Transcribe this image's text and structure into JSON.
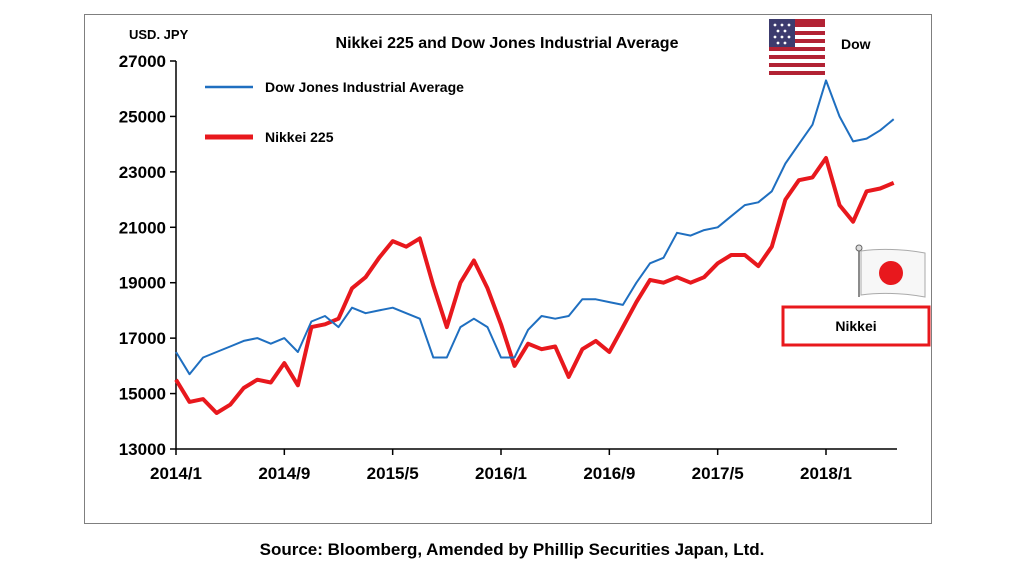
{
  "chart_data": {
    "type": "line",
    "title": "Nikkei 225 and Dow Jones Industrial Average",
    "unit_label": "USD. JPY",
    "xlabel": "",
    "ylabel": "",
    "x_ticks": [
      "2014/1",
      "2014/9",
      "2015/5",
      "2016/1",
      "2016/9",
      "2017/5",
      "2018/1"
    ],
    "y_ticks": [
      13000,
      15000,
      17000,
      19000,
      21000,
      23000,
      25000,
      27000
    ],
    "ylim": [
      13000,
      27000
    ],
    "x_range_months": [
      "2014/1",
      "2018/6"
    ],
    "grid": false,
    "legend_position": "top-left",
    "series": [
      {
        "name": "Dow Jones Industrial Average",
        "color": "#1f6fc0",
        "x": [
          "2014/1",
          "2014/2",
          "2014/3",
          "2014/4",
          "2014/5",
          "2014/6",
          "2014/7",
          "2014/8",
          "2014/9",
          "2014/10",
          "2014/11",
          "2014/12",
          "2015/1",
          "2015/2",
          "2015/3",
          "2015/4",
          "2015/5",
          "2015/6",
          "2015/7",
          "2015/8",
          "2015/9",
          "2015/10",
          "2015/11",
          "2015/12",
          "2016/1",
          "2016/2",
          "2016/3",
          "2016/4",
          "2016/5",
          "2016/6",
          "2016/7",
          "2016/8",
          "2016/9",
          "2016/10",
          "2016/11",
          "2016/12",
          "2017/1",
          "2017/2",
          "2017/3",
          "2017/4",
          "2017/5",
          "2017/6",
          "2017/7",
          "2017/8",
          "2017/9",
          "2017/10",
          "2017/11",
          "2017/12",
          "2018/1",
          "2018/2",
          "2018/3",
          "2018/4",
          "2018/5",
          "2018/6"
        ],
        "values": [
          16500,
          15700,
          16300,
          16500,
          16700,
          16900,
          17000,
          16800,
          17000,
          16500,
          17600,
          17800,
          17400,
          18100,
          17900,
          18000,
          18100,
          17900,
          17700,
          16300,
          16300,
          17400,
          17700,
          17400,
          16300,
          16300,
          17300,
          17800,
          17700,
          17800,
          18400,
          18400,
          18300,
          18200,
          19000,
          19700,
          19900,
          20800,
          20700,
          20900,
          21000,
          21400,
          21800,
          21900,
          22300,
          23300,
          24000,
          24700,
          26300,
          25000,
          24100,
          24200,
          24500,
          24900
        ]
      },
      {
        "name": "Nikkei 225",
        "color": "#e8181d",
        "x": [
          "2014/1",
          "2014/2",
          "2014/3",
          "2014/4",
          "2014/5",
          "2014/6",
          "2014/7",
          "2014/8",
          "2014/9",
          "2014/10",
          "2014/11",
          "2014/12",
          "2015/1",
          "2015/2",
          "2015/3",
          "2015/4",
          "2015/5",
          "2015/6",
          "2015/7",
          "2015/8",
          "2015/9",
          "2015/10",
          "2015/11",
          "2015/12",
          "2016/1",
          "2016/2",
          "2016/3",
          "2016/4",
          "2016/5",
          "2016/6",
          "2016/7",
          "2016/8",
          "2016/9",
          "2016/10",
          "2016/11",
          "2016/12",
          "2017/1",
          "2017/2",
          "2017/3",
          "2017/4",
          "2017/5",
          "2017/6",
          "2017/7",
          "2017/8",
          "2017/9",
          "2017/10",
          "2017/11",
          "2017/12",
          "2018/1",
          "2018/2",
          "2018/3",
          "2018/4",
          "2018/5",
          "2018/6"
        ],
        "values": [
          15500,
          14700,
          14800,
          14300,
          14600,
          15200,
          15500,
          15400,
          16100,
          15300,
          17400,
          17500,
          17700,
          18800,
          19200,
          19900,
          20500,
          20300,
          20600,
          18900,
          17400,
          19000,
          19800,
          18800,
          17500,
          16000,
          16800,
          16600,
          16700,
          15600,
          16600,
          16900,
          16500,
          17400,
          18300,
          19100,
          19000,
          19200,
          19000,
          19200,
          19700,
          20000,
          20000,
          19600,
          20300,
          22000,
          22700,
          22800,
          23500,
          21800,
          21200,
          22300,
          22400,
          22600
        ]
      }
    ]
  },
  "legend": {
    "dow_label": "Dow Jones Industrial Average",
    "nikkei_label": "Nikkei 225"
  },
  "annotations": {
    "dow_flag_label": "Dow",
    "nikkei_box_label": "Nikkei",
    "dow_flag_icon": "us-flag-icon",
    "nikkei_flag_icon": "japan-flag-icon"
  },
  "source": "Source: Bloomberg, Amended by Phillip Securities Japan, Ltd."
}
